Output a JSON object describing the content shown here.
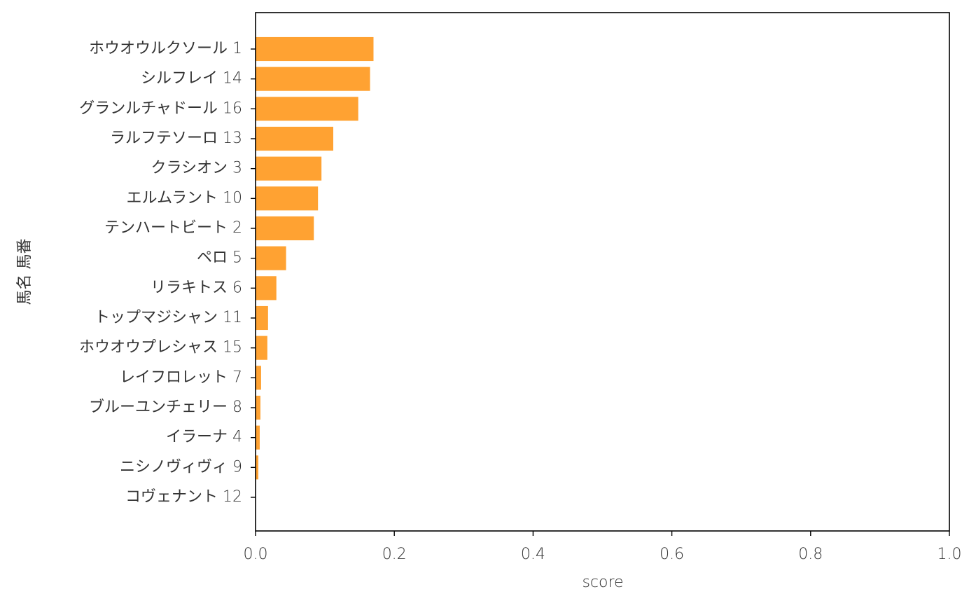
{
  "chart_data": {
    "type": "barh",
    "xlabel": "score",
    "ylabel": "馬名 馬番",
    "categories": [
      "ホウオウルクソール 1",
      "シルフレイ 14",
      "グランルチャドール 16",
      "ラルフテソーロ 13",
      "クラシオン 3",
      "エルムラント 10",
      "テンハートビート 2",
      "ペロ 5",
      "リラキトス 6",
      "トップマジシャン 11",
      "ホウオウプレシャス 15",
      "レイフロレット 7",
      "ブルーユンチェリー 8",
      "イラーナ 4",
      "ニシノヴィヴィ 9",
      "コヴェナント 12"
    ],
    "values": [
      0.17,
      0.165,
      0.148,
      0.112,
      0.095,
      0.09,
      0.084,
      0.044,
      0.03,
      0.018,
      0.017,
      0.008,
      0.007,
      0.006,
      0.004,
      0
    ],
    "color": "#ffa232",
    "xlim": [
      0,
      1
    ],
    "xticks": [
      {
        "value": 0,
        "label": "0.0"
      },
      0.2,
      0.4,
      0.6,
      0.8,
      {
        "value": 1,
        "label": "1.0"
      }
    ]
  }
}
